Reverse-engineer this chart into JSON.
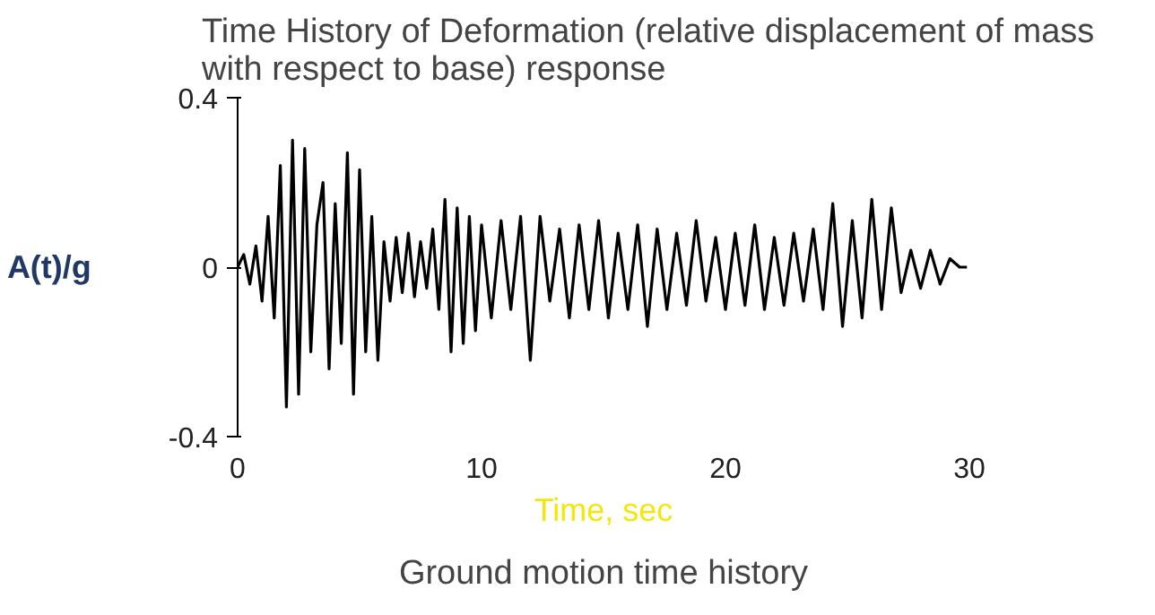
{
  "chart_data": {
    "type": "line",
    "title": "Time History of Deformation (relative displacement of mass\nwith respect to base) response",
    "xlabel": "Time, sec",
    "ylabel": "A(t)/g",
    "annotations": [
      "Ground motion time history"
    ],
    "x": [
      0,
      0.25,
      0.5,
      0.75,
      1.0,
      1.25,
      1.5,
      1.75,
      2.0,
      2.25,
      2.5,
      2.75,
      3.0,
      3.25,
      3.5,
      3.75,
      4.0,
      4.25,
      4.5,
      4.75,
      5.0,
      5.25,
      5.5,
      5.75,
      6.0,
      6.25,
      6.5,
      6.75,
      7.0,
      7.25,
      7.5,
      7.75,
      8.0,
      8.25,
      8.5,
      8.75,
      9.0,
      9.25,
      9.5,
      9.75,
      10.0,
      10.4,
      10.8,
      11.2,
      11.6,
      12.0,
      12.4,
      12.8,
      13.2,
      13.6,
      14.0,
      14.4,
      14.8,
      15.2,
      15.6,
      16.0,
      16.4,
      16.8,
      17.2,
      17.6,
      18.0,
      18.4,
      18.8,
      19.2,
      19.6,
      20.0,
      20.4,
      20.8,
      21.2,
      21.6,
      22.0,
      22.4,
      22.8,
      23.2,
      23.6,
      24.0,
      24.4,
      24.8,
      25.2,
      25.6,
      26.0,
      26.4,
      26.8,
      27.2,
      27.6,
      28.0,
      28.4,
      28.8,
      29.2,
      29.6,
      29.9
    ],
    "series": [
      {
        "color": "#000000",
        "values": [
          0,
          0.03,
          -0.04,
          0.05,
          -0.08,
          0.12,
          -0.12,
          0.24,
          -0.33,
          0.3,
          -0.3,
          0.28,
          -0.2,
          0.1,
          0.2,
          -0.24,
          0.15,
          -0.18,
          0.27,
          -0.3,
          0.23,
          -0.2,
          0.12,
          -0.22,
          0.06,
          -0.08,
          0.07,
          -0.06,
          0.08,
          -0.07,
          0.06,
          -0.05,
          0.09,
          -0.1,
          0.16,
          -0.2,
          0.14,
          -0.18,
          0.12,
          -0.15,
          0.1,
          -0.12,
          0.11,
          -0.1,
          0.12,
          -0.22,
          0.12,
          -0.08,
          0.09,
          -0.12,
          0.1,
          -0.1,
          0.11,
          -0.12,
          0.08,
          -0.1,
          0.1,
          -0.14,
          0.09,
          -0.1,
          0.08,
          -0.09,
          0.11,
          -0.08,
          0.07,
          -0.1,
          0.08,
          -0.09,
          0.1,
          -0.1,
          0.07,
          -0.09,
          0.08,
          -0.08,
          0.09,
          -0.1,
          0.15,
          -0.14,
          0.11,
          -0.12,
          0.16,
          -0.1,
          0.14,
          -0.06,
          0.04,
          -0.05,
          0.04,
          -0.04,
          0.02,
          0,
          0
        ]
      }
    ],
    "xlim": [
      0,
      30
    ],
    "ylim": [
      -0.4,
      0.4
    ],
    "xticks": [
      0,
      10,
      20,
      30
    ],
    "yticks": [
      -0.4,
      0,
      0.4
    ],
    "grid": false
  }
}
